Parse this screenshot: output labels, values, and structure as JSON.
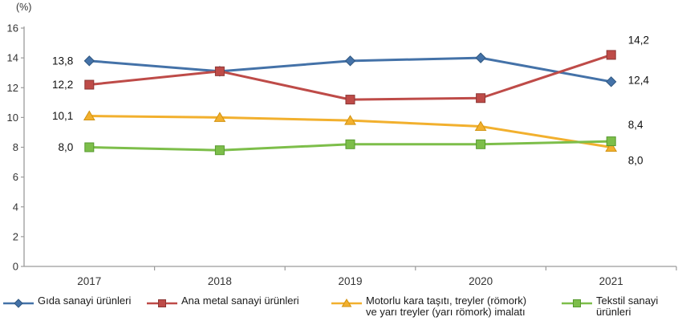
{
  "chart_data": {
    "type": "line",
    "title": "",
    "unit_label": "(%)",
    "categories": [
      "2017",
      "2018",
      "2019",
      "2020",
      "2021"
    ],
    "series": [
      {
        "name": "Gıda sanayi ürünleri",
        "marker": "diamond",
        "color": "#4472A8",
        "marker_stroke": "#2F5780",
        "values": [
          13.8,
          13.1,
          13.8,
          14.0,
          12.4
        ]
      },
      {
        "name": "Ana metal sanayi ürünleri",
        "marker": "square",
        "color": "#BE4B48",
        "marker_stroke": "#8C3634",
        "values": [
          12.2,
          13.1,
          11.2,
          11.3,
          14.2
        ]
      },
      {
        "name": "Motorlu kara taşıtı, treyler (römork) ve yarı treyler (yarı römork) imalatı",
        "marker": "triangle",
        "color": "#F2B02E",
        "marker_stroke": "#D29310",
        "values": [
          10.1,
          10.0,
          9.8,
          9.4,
          8.0
        ]
      },
      {
        "name": "Tekstil sanayi ürünleri",
        "marker": "square",
        "color": "#7DBE4A",
        "marker_stroke": "#569A2E",
        "values": [
          8.0,
          7.8,
          8.2,
          8.2,
          8.4
        ]
      }
    ],
    "ylim": [
      0,
      16
    ],
    "y_tick_step": 2,
    "y_tick_labels": [
      "0",
      "2",
      "4",
      "6",
      "8",
      "10",
      "12",
      "14",
      "16"
    ],
    "grid": false,
    "legend_position": "bottom",
    "point_labels": [
      {
        "text": "13,8",
        "side": "left",
        "y_value": 13.8
      },
      {
        "text": "12,2",
        "side": "left",
        "y_value": 12.2
      },
      {
        "text": "10,1",
        "side": "left",
        "y_value": 10.1
      },
      {
        "text": "8,0",
        "side": "left",
        "y_value": 8.0
      },
      {
        "text": "14,2",
        "side": "right",
        "y_value": 15.2
      },
      {
        "text": "12,4",
        "side": "right",
        "y_value": 12.5
      },
      {
        "text": "8,4",
        "side": "right",
        "y_value": 9.5
      },
      {
        "text": "8,0",
        "side": "right",
        "y_value": 7.1
      }
    ],
    "axis_color": "#9B9B9B",
    "text_color": "#333333",
    "label_color": "#111111"
  },
  "legend": {
    "items": [
      {
        "label": "Gıda sanayi ürünleri"
      },
      {
        "label": "Ana metal sanayi ürünleri"
      },
      {
        "label": "Motorlu kara taşıtı, treyler (römork)\nve yarı treyler (yarı römork) imalatı"
      },
      {
        "label": "Tekstil sanayi ürünleri"
      }
    ]
  }
}
